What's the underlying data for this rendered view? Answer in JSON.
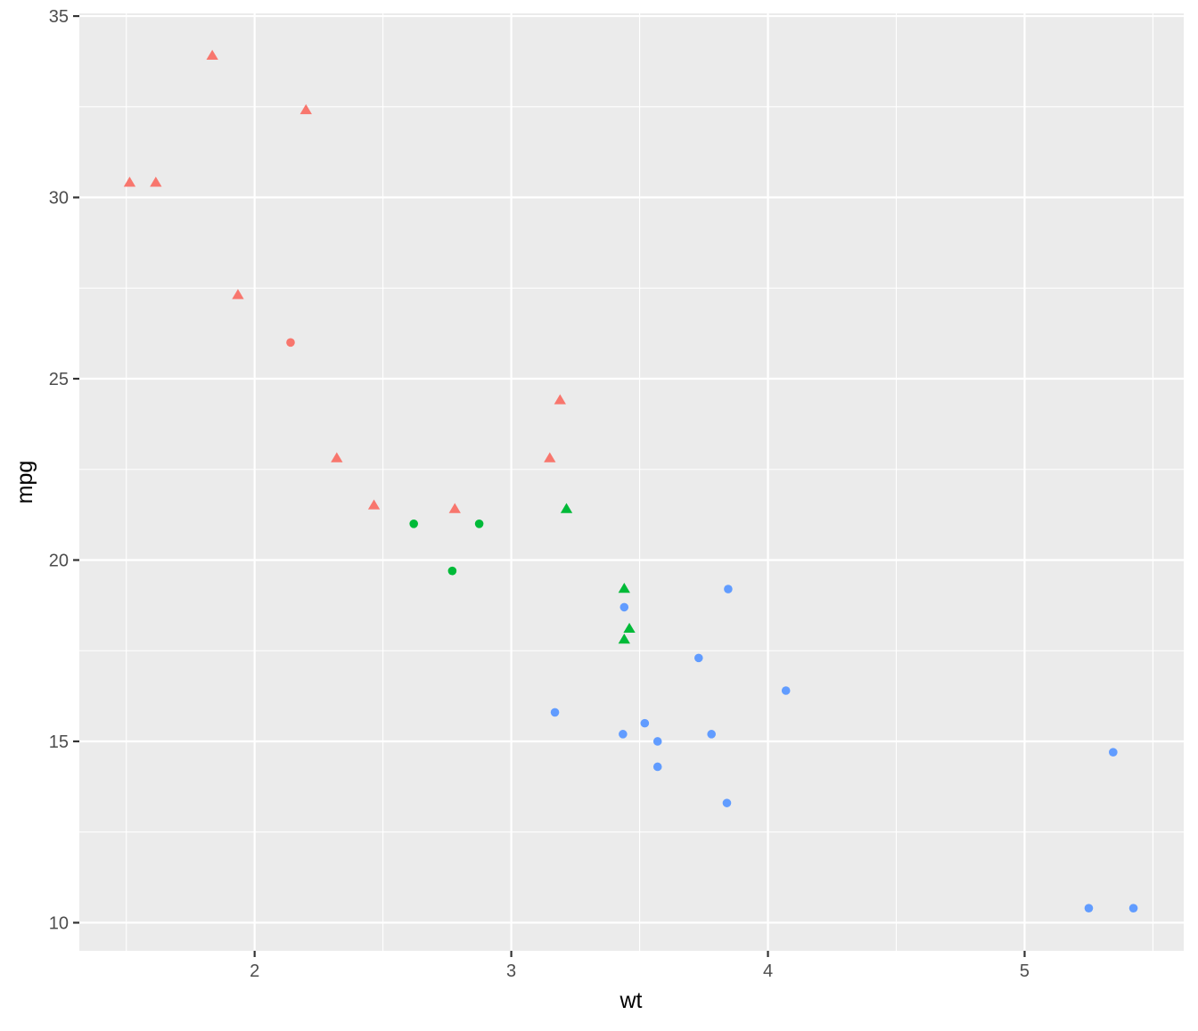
{
  "chart_data": {
    "type": "scatter",
    "title": "",
    "xlabel": "wt",
    "ylabel": "mpg",
    "xlim": [
      1.317,
      5.62
    ],
    "ylim": [
      9.225,
      35.075
    ],
    "x_ticks": [
      2,
      3,
      4,
      5
    ],
    "y_ticks": [
      10,
      15,
      20,
      25,
      30,
      35
    ],
    "x_minor_ticks": [
      1.5,
      2.5,
      3.5,
      4.5,
      5.5
    ],
    "y_minor_ticks": [
      12.5,
      17.5,
      22.5,
      27.5,
      32.5
    ],
    "grid": true,
    "legend": "none",
    "panel_background": "#EBEBEB",
    "grid_color": "#FFFFFF",
    "group_colors": {
      "4": "#F8766D",
      "6": "#00BA38",
      "8": "#619CFF"
    },
    "group_shapes": {
      "0": "circle",
      "1": "triangle"
    },
    "points": [
      {
        "x": 2.62,
        "y": 21.0,
        "color_group": "6",
        "shape_group": "0"
      },
      {
        "x": 2.875,
        "y": 21.0,
        "color_group": "6",
        "shape_group": "0"
      },
      {
        "x": 2.32,
        "y": 22.8,
        "color_group": "4",
        "shape_group": "1"
      },
      {
        "x": 3.215,
        "y": 21.4,
        "color_group": "6",
        "shape_group": "1"
      },
      {
        "x": 3.44,
        "y": 18.7,
        "color_group": "8",
        "shape_group": "0"
      },
      {
        "x": 3.46,
        "y": 18.1,
        "color_group": "6",
        "shape_group": "1"
      },
      {
        "x": 3.57,
        "y": 14.3,
        "color_group": "8",
        "shape_group": "0"
      },
      {
        "x": 3.19,
        "y": 24.4,
        "color_group": "4",
        "shape_group": "1"
      },
      {
        "x": 3.15,
        "y": 22.8,
        "color_group": "4",
        "shape_group": "1"
      },
      {
        "x": 3.44,
        "y": 19.2,
        "color_group": "6",
        "shape_group": "1"
      },
      {
        "x": 3.44,
        "y": 17.8,
        "color_group": "6",
        "shape_group": "1"
      },
      {
        "x": 4.07,
        "y": 16.4,
        "color_group": "8",
        "shape_group": "0"
      },
      {
        "x": 3.73,
        "y": 17.3,
        "color_group": "8",
        "shape_group": "0"
      },
      {
        "x": 3.78,
        "y": 15.2,
        "color_group": "8",
        "shape_group": "0"
      },
      {
        "x": 5.25,
        "y": 10.4,
        "color_group": "8",
        "shape_group": "0"
      },
      {
        "x": 5.424,
        "y": 10.4,
        "color_group": "8",
        "shape_group": "0"
      },
      {
        "x": 5.345,
        "y": 14.7,
        "color_group": "8",
        "shape_group": "0"
      },
      {
        "x": 2.2,
        "y": 32.4,
        "color_group": "4",
        "shape_group": "1"
      },
      {
        "x": 1.615,
        "y": 30.4,
        "color_group": "4",
        "shape_group": "1"
      },
      {
        "x": 1.835,
        "y": 33.9,
        "color_group": "4",
        "shape_group": "1"
      },
      {
        "x": 2.465,
        "y": 21.5,
        "color_group": "4",
        "shape_group": "1"
      },
      {
        "x": 3.52,
        "y": 15.5,
        "color_group": "8",
        "shape_group": "0"
      },
      {
        "x": 3.435,
        "y": 15.2,
        "color_group": "8",
        "shape_group": "0"
      },
      {
        "x": 3.84,
        "y": 13.3,
        "color_group": "8",
        "shape_group": "0"
      },
      {
        "x": 3.845,
        "y": 19.2,
        "color_group": "8",
        "shape_group": "0"
      },
      {
        "x": 1.935,
        "y": 27.3,
        "color_group": "4",
        "shape_group": "1"
      },
      {
        "x": 2.14,
        "y": 26.0,
        "color_group": "4",
        "shape_group": "0"
      },
      {
        "x": 1.513,
        "y": 30.4,
        "color_group": "4",
        "shape_group": "1"
      },
      {
        "x": 3.17,
        "y": 15.8,
        "color_group": "8",
        "shape_group": "0"
      },
      {
        "x": 2.77,
        "y": 19.7,
        "color_group": "6",
        "shape_group": "0"
      },
      {
        "x": 3.57,
        "y": 15.0,
        "color_group": "8",
        "shape_group": "0"
      },
      {
        "x": 2.78,
        "y": 21.4,
        "color_group": "4",
        "shape_group": "1"
      }
    ]
  }
}
